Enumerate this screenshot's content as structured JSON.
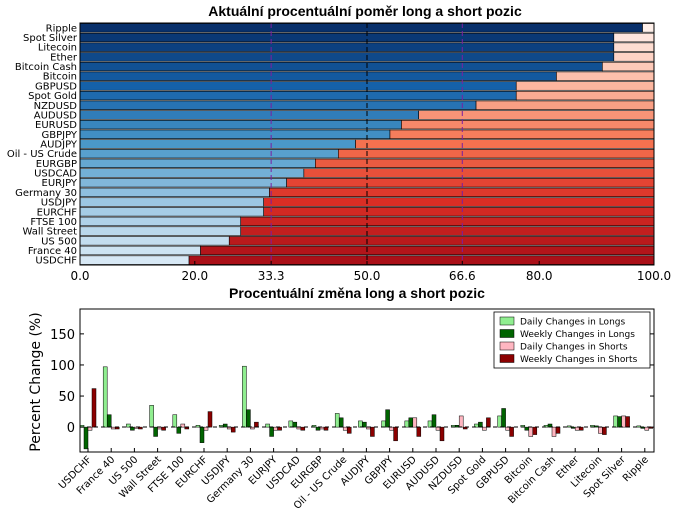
{
  "chart_data": [
    {
      "type": "bar",
      "orientation": "horizontal",
      "stacked": true,
      "title": "Aktuální procentuální poměr long a short pozic",
      "categories": [
        "Ripple",
        "Spot Silver",
        "Litecoin",
        "Ether",
        "Bitcoin Cash",
        "Bitcoin",
        "GBPUSD",
        "Spot Gold",
        "NZDUSD",
        "AUDUSD",
        "EURUSD",
        "GBPJPY",
        "AUDJPY",
        "Oil - US Crude",
        "EURGBP",
        "USDCAD",
        "EURJPY",
        "Germany 30",
        "USDJPY",
        "EURCHF",
        "FTSE 100",
        "Wall Street",
        "US 500",
        "France 40",
        "USDCHF"
      ],
      "series": [
        {
          "name": "",
          "values": [
            98,
            93,
            93,
            93,
            91,
            83,
            76,
            76,
            69,
            59,
            56,
            54,
            48,
            45,
            41,
            39,
            36,
            33,
            32,
            32,
            28,
            28,
            26,
            21,
            19
          ]
        },
        {
          "name": "",
          "values": [
            2,
            7,
            7,
            7,
            9,
            17,
            24,
            24,
            31,
            41,
            44,
            46,
            52,
            55,
            59,
            61,
            64,
            67,
            68,
            68,
            72,
            72,
            74,
            79,
            81
          ]
        }
      ],
      "xlim": [
        0,
        100
      ],
      "xticks": [
        "0.0",
        "20.0",
        "33.3",
        "50.0",
        "66.6",
        "80.0",
        "100.0"
      ],
      "xticks_highlighted": [
        "33.3",
        "66.6"
      ],
      "reference_lines": [
        33.3,
        50.0,
        66.6
      ],
      "colors": {
        "long": "#1f5aa3",
        "short": "#d62f26",
        "highlight": "#7b1fa2"
      }
    },
    {
      "type": "bar",
      "title": "Procentuální změna long a short pozic",
      "ylabel": "Percent Change (%)",
      "ylim": [
        -40,
        190
      ],
      "yticks": [
        "0",
        "50",
        "100",
        "150"
      ],
      "categories": [
        "USDCHF",
        "France 40",
        "US 500",
        "Wall Street",
        "FTSE 100",
        "EURCHF",
        "USDJPY",
        "Germany 30",
        "EURJPY",
        "USDCAD",
        "EURGBP",
        "Oil - US Crude",
        "AUDJPY",
        "GBPJPY",
        "EURUSD",
        "AUDUSD",
        "NZDUSD",
        "Spot Gold",
        "GBPUSD",
        "Bitcoin",
        "Bitcoin Cash",
        "Ether",
        "Litecoin",
        "Spot Silver",
        "Ripple"
      ],
      "series": [
        {
          "name": "Daily Changes in Longs",
          "color": "#90ee90",
          "values": [
            3,
            97,
            5,
            35,
            20,
            3,
            3,
            98,
            5,
            10,
            3,
            22,
            10,
            10,
            10,
            10,
            3,
            5,
            18,
            3,
            3,
            2,
            3,
            18,
            2
          ]
        },
        {
          "name": "Weekly Changes in Longs",
          "color": "#006400",
          "values": [
            -35,
            20,
            -5,
            -15,
            -10,
            -25,
            5,
            28,
            -15,
            8,
            -5,
            15,
            8,
            28,
            15,
            20,
            3,
            8,
            30,
            -5,
            5,
            -2,
            2,
            17,
            -2
          ]
        },
        {
          "name": "Daily Changes in Shorts",
          "color": "#ffb6c1",
          "values": [
            -5,
            -3,
            -2,
            -3,
            5,
            -5,
            -3,
            -3,
            -5,
            -3,
            -3,
            -5,
            -3,
            -5,
            15,
            -5,
            18,
            -5,
            -5,
            -15,
            -15,
            -5,
            -10,
            18,
            -5
          ]
        },
        {
          "name": "Weekly Changes in Shorts",
          "color": "#8b0000",
          "values": [
            62,
            -3,
            -3,
            -5,
            -3,
            25,
            -8,
            8,
            -5,
            -5,
            -5,
            -10,
            -15,
            -22,
            -15,
            -22,
            -3,
            15,
            -15,
            -12,
            -10,
            -5,
            -12,
            17,
            -2
          ]
        }
      ],
      "legend_position": "top-right",
      "grid": false
    }
  ]
}
